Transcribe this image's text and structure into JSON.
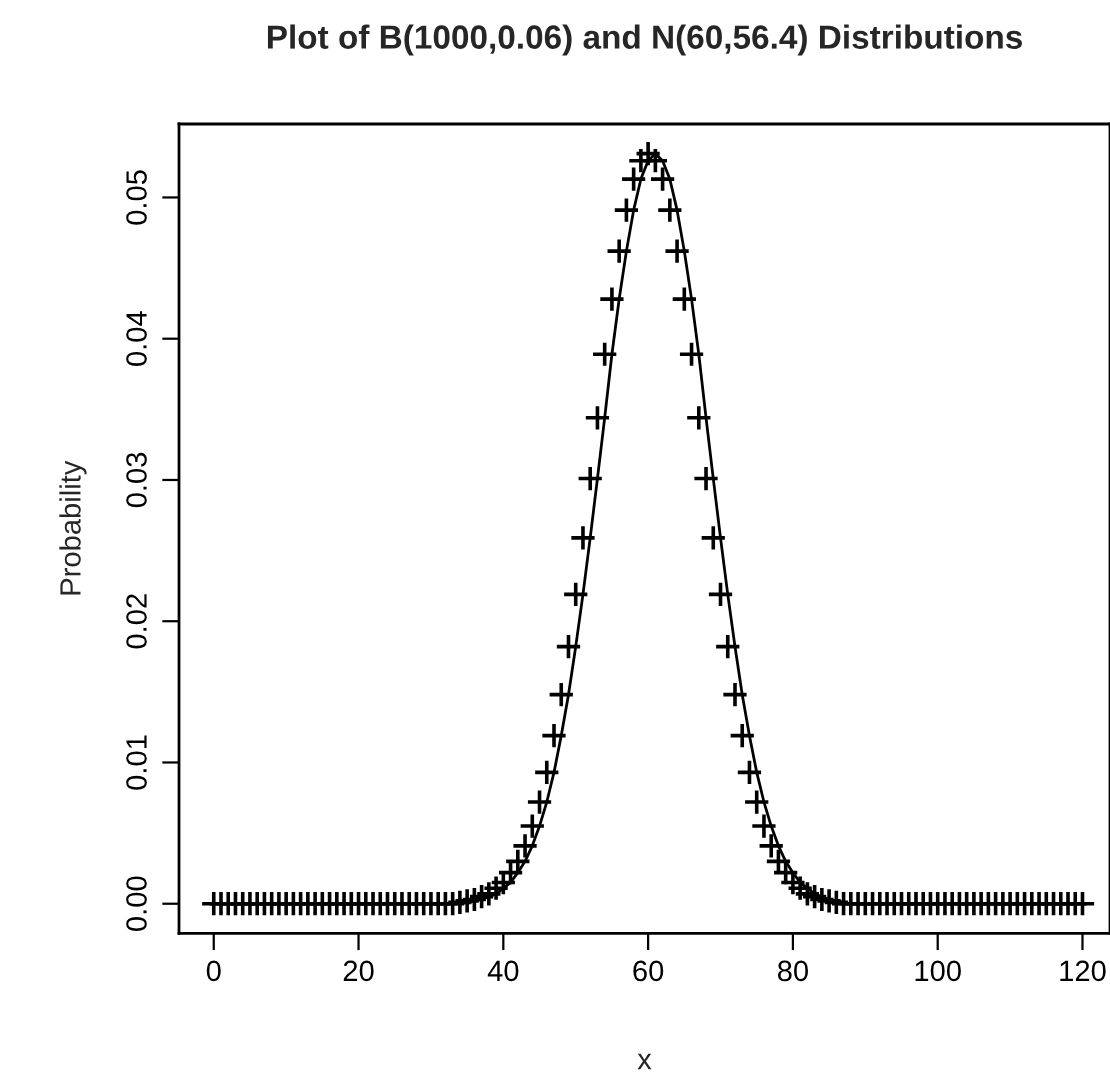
{
  "chart_data": {
    "type": "scatter",
    "title": "Plot of B(1000,0.06) and N(60,56.4) Distributions",
    "xlabel": "x",
    "ylabel": "Probability",
    "xlim": [
      -4.8,
      123.8
    ],
    "ylim": [
      -0.0021,
      0.0552
    ],
    "xticks": [
      0,
      20,
      40,
      60,
      80,
      100,
      120
    ],
    "yticks": [
      {
        "value": 0,
        "label": "0.00"
      },
      {
        "value": 0.01,
        "label": "0.01"
      },
      {
        "value": 0.02,
        "label": "0.02"
      },
      {
        "value": 0.03,
        "label": "0.03"
      },
      {
        "value": 0.04,
        "label": "0.04"
      },
      {
        "value": 0.05,
        "label": "0.05"
      }
    ],
    "grid": false,
    "legend": false,
    "series": [
      {
        "marker": "cross",
        "color": "#000000",
        "x": [
          0,
          1,
          2,
          3,
          4,
          5,
          6,
          7,
          8,
          9,
          10,
          11,
          12,
          13,
          14,
          15,
          16,
          17,
          18,
          19,
          20,
          21,
          22,
          23,
          24,
          25,
          26,
          27,
          28,
          29,
          30,
          31,
          32,
          33,
          34,
          35,
          36,
          37,
          38,
          39,
          40,
          41,
          42,
          43,
          44,
          45,
          46,
          47,
          48,
          49,
          50,
          51,
          52,
          53,
          54,
          55,
          56,
          57,
          58,
          59,
          60,
          61,
          62,
          63,
          64,
          65,
          66,
          67,
          68,
          69,
          70,
          71,
          72,
          73,
          74,
          75,
          76,
          77,
          78,
          79,
          80,
          81,
          82,
          83,
          84,
          85,
          86,
          87,
          88,
          89,
          90,
          91,
          92,
          93,
          94,
          95,
          96,
          97,
          98,
          99,
          100,
          101,
          102,
          103,
          104,
          105,
          106,
          107,
          108,
          109,
          110,
          111,
          112,
          113,
          114,
          115,
          116,
          117,
          118,
          119,
          120
        ],
        "values": [
          0,
          0,
          0,
          0,
          0,
          0,
          0,
          0,
          0,
          0,
          0,
          0,
          0,
          0,
          0,
          0,
          0,
          0,
          0,
          0,
          0,
          0,
          0,
          0,
          0,
          0,
          0,
          0,
          0,
          0,
          0,
          0,
          0,
          0,
          0.0001,
          0.0002,
          0.0003,
          0.0005,
          0.0007,
          0.0011,
          0.0015,
          0.0022,
          0.003,
          0.0041,
          0.0055,
          0.0072,
          0.0093,
          0.0119,
          0.0148,
          0.0182,
          0.0219,
          0.0259,
          0.0301,
          0.0344,
          0.0389,
          0.0428,
          0.0462,
          0.0491,
          0.0513,
          0.0526,
          0.0531,
          0.0526,
          0.0513,
          0.0491,
          0.0462,
          0.0428,
          0.0389,
          0.0344,
          0.0301,
          0.0259,
          0.0219,
          0.0182,
          0.0148,
          0.0119,
          0.0093,
          0.0072,
          0.0055,
          0.0041,
          0.003,
          0.0022,
          0.0015,
          0.0011,
          0.0007,
          0.0005,
          0.0003,
          0.0002,
          0.0001,
          0,
          0,
          0,
          0,
          0,
          0,
          0,
          0,
          0,
          0,
          0,
          0,
          0,
          0,
          0,
          0,
          0,
          0,
          0,
          0,
          0,
          0,
          0,
          0,
          0,
          0,
          0,
          0,
          0,
          0,
          0,
          0,
          0,
          0
        ]
      },
      {
        "type": "line",
        "line_style": "solid",
        "color": "#000000",
        "x": [
          0,
          10,
          20,
          30,
          31,
          32,
          33,
          34,
          35,
          36,
          37,
          38,
          39,
          40,
          41,
          42,
          43,
          44,
          45,
          46,
          47,
          48,
          49,
          50,
          51,
          52,
          53,
          54,
          55,
          56,
          57,
          58,
          59,
          60,
          61,
          62,
          63,
          64,
          65,
          66,
          67,
          68,
          69,
          70,
          71,
          72,
          73,
          74,
          75,
          76,
          77,
          78,
          79,
          80,
          81,
          82,
          83,
          84,
          85,
          86,
          87,
          88,
          89,
          90,
          91,
          92,
          100,
          110,
          121
        ],
        "values": [
          0,
          0,
          0,
          0,
          0,
          0,
          0,
          0,
          0.0001,
          0.0002,
          0.0003,
          0.0005,
          0.0007,
          0.0011,
          0.0015,
          0.0022,
          0.003,
          0.0041,
          0.0055,
          0.0072,
          0.0093,
          0.0119,
          0.0148,
          0.0182,
          0.0219,
          0.0259,
          0.0301,
          0.0344,
          0.0389,
          0.0428,
          0.0462,
          0.0491,
          0.0513,
          0.0526,
          0.0531,
          0.0526,
          0.0513,
          0.0491,
          0.0462,
          0.0428,
          0.0389,
          0.0344,
          0.0301,
          0.0259,
          0.0219,
          0.0182,
          0.0148,
          0.0119,
          0.0093,
          0.0072,
          0.0055,
          0.0041,
          0.003,
          0.0022,
          0.0015,
          0.0011,
          0.0007,
          0.0005,
          0.0003,
          0.0002,
          0.0001,
          0,
          0,
          0,
          0,
          0,
          0,
          0,
          0
        ]
      }
    ]
  }
}
